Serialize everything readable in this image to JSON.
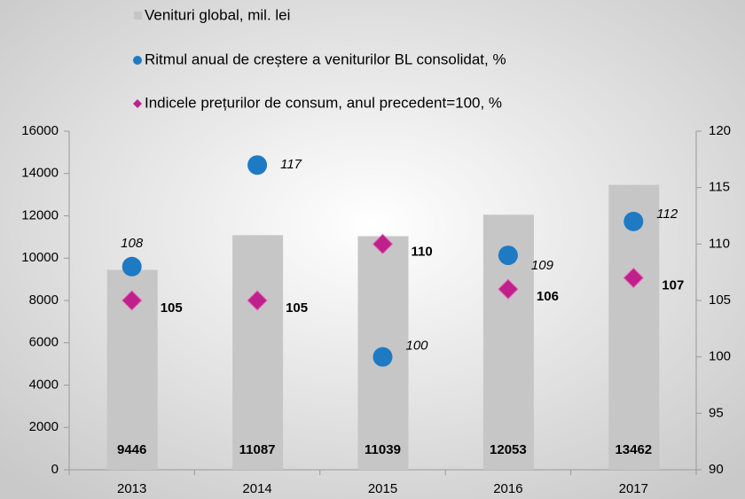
{
  "chart_data": {
    "type": "bar",
    "categories": [
      "2013",
      "2014",
      "2015",
      "2016",
      "2017"
    ],
    "series": [
      {
        "name": "Venituri global, mil. lei",
        "type": "bar",
        "color": "#c6c6c6",
        "values": [
          9446,
          11087,
          11039,
          12053,
          13462
        ]
      },
      {
        "name": "Ritmul anual de creștere a veniturilor BL consolidat, %",
        "type": "circle",
        "axis": "y2",
        "color": "#1f7ac4",
        "values": [
          108,
          117,
          100,
          109,
          112
        ]
      },
      {
        "name": "Indicele prețurilor de consum, anul precedent=100, %",
        "type": "diamond",
        "axis": "y2",
        "color": "#c0208c",
        "values": [
          105,
          105,
          110,
          106,
          107
        ]
      }
    ],
    "ylim": [
      0,
      16000
    ],
    "yticks": [
      0,
      2000,
      4000,
      6000,
      8000,
      10000,
      12000,
      14000,
      16000
    ],
    "y2lim": [
      90,
      120
    ],
    "y2ticks": [
      90,
      95,
      100,
      105,
      110,
      115,
      120
    ],
    "legend": "top"
  }
}
